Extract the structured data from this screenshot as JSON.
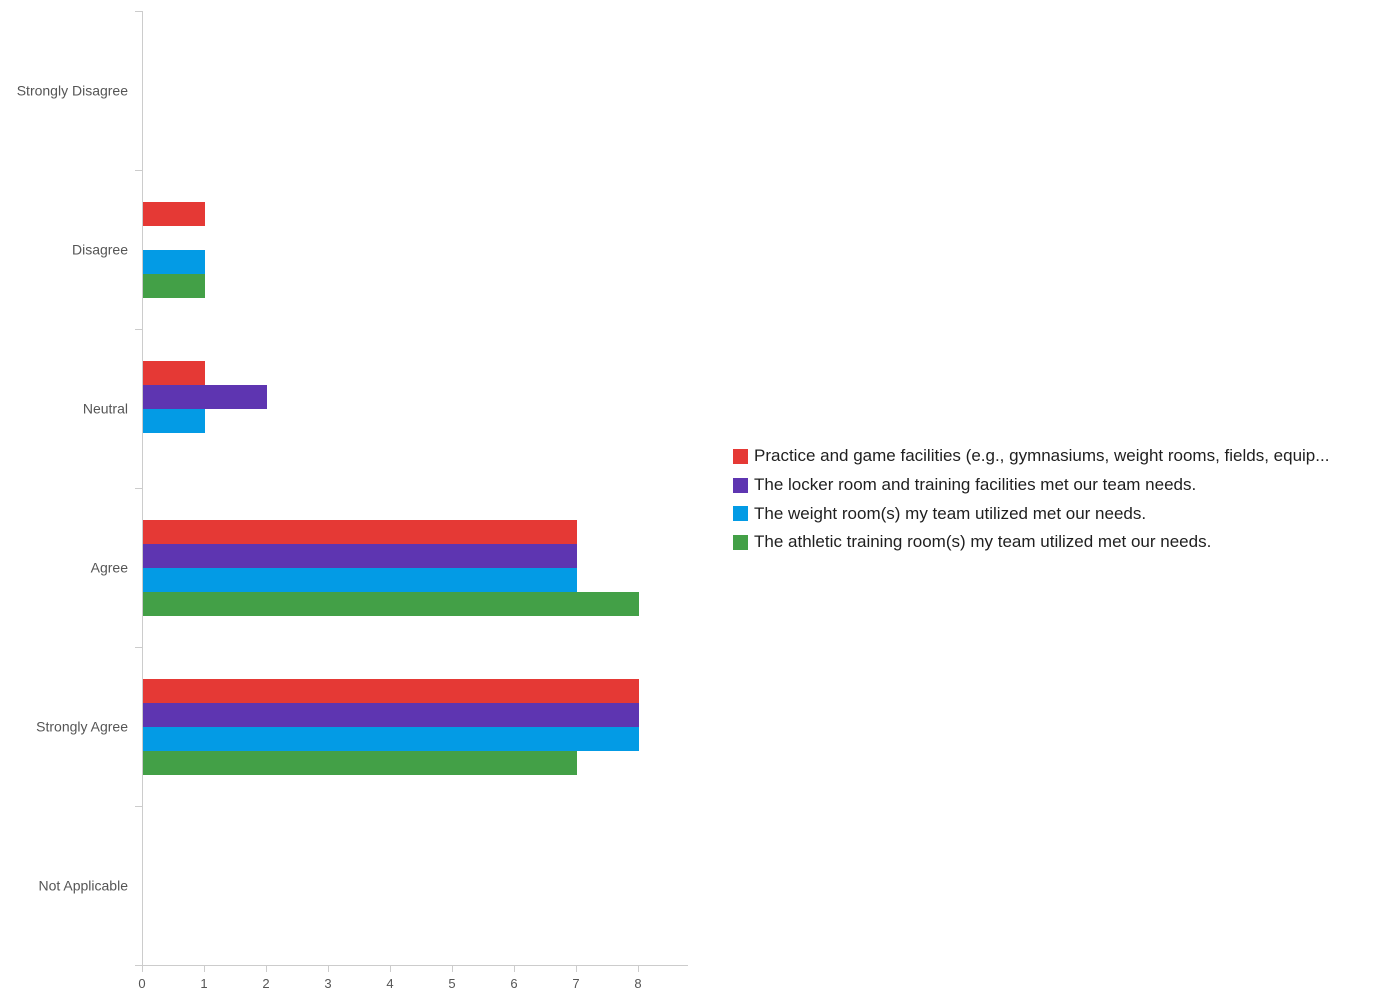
{
  "chart_data": {
    "type": "bar",
    "orientation": "horizontal",
    "categories": [
      "Strongly Disagree",
      "Disagree",
      "Neutral",
      "Agree",
      "Strongly Agree",
      "Not Applicable"
    ],
    "x_ticks": [
      "0",
      "1",
      "2",
      "3",
      "4",
      "5",
      "6",
      "7",
      "8"
    ],
    "xlim": [
      0,
      8.8
    ],
    "grid": false,
    "legend_position": "right",
    "series": [
      {
        "name": "Practice and game facilities (e.g., gymnasiums, weight rooms, fields, equip...",
        "color": "#e53935",
        "values": [
          0,
          1,
          1,
          7,
          8,
          0
        ]
      },
      {
        "name": "The locker room and training facilities met our team needs.",
        "color": "#5e35b1",
        "values": [
          0,
          0,
          2,
          7,
          8,
          0
        ]
      },
      {
        "name": "The weight room(s) my team utilized met our needs.",
        "color": "#039be5",
        "values": [
          0,
          1,
          1,
          7,
          8,
          0
        ]
      },
      {
        "name": "The athletic training room(s) my team utilized met our needs.",
        "color": "#43a047",
        "values": [
          0,
          1,
          0,
          8,
          7,
          0
        ]
      }
    ]
  }
}
